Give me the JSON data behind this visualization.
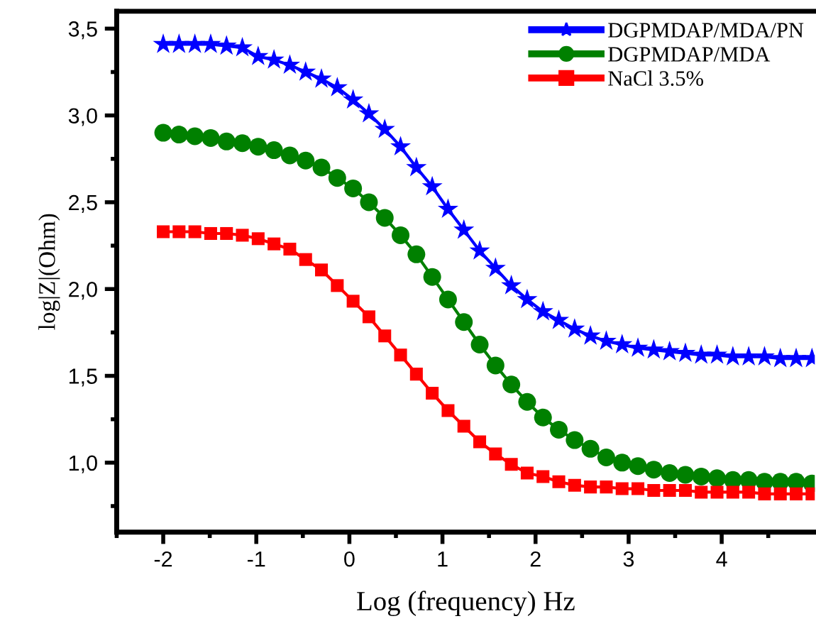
{
  "chart_data": {
    "type": "line",
    "xlabel": "Log (frequency) Hz",
    "ylabel": "log|Z|(Ohm)",
    "xlim": [
      -2.5,
      5.0
    ],
    "ylim": [
      0.6,
      3.6
    ],
    "xticks": [
      {
        "value": -2.5,
        "label": null
      },
      -2,
      {
        "value": -1.5,
        "label": null
      },
      -1,
      {
        "value": -0.5,
        "label": null
      },
      0,
      {
        "value": 0.5,
        "label": null
      },
      1,
      {
        "value": 1.5,
        "label": null
      },
      2,
      {
        "value": 2.5,
        "label": null
      },
      3,
      {
        "value": 3.5,
        "label": null
      },
      4,
      {
        "value": 4.5,
        "label": null
      }
    ],
    "yticks": [
      {
        "value": 0.75,
        "label": null
      },
      {
        "value": 1.0,
        "label": "1,0"
      },
      {
        "value": 1.25,
        "label": null
      },
      {
        "value": 1.5,
        "label": "1,5"
      },
      {
        "value": 1.75,
        "label": null
      },
      {
        "value": 2.0,
        "label": "2,0"
      },
      {
        "value": 2.25,
        "label": null
      },
      {
        "value": 2.5,
        "label": "2,5"
      },
      {
        "value": 2.75,
        "label": null
      },
      {
        "value": 3.0,
        "label": "3,0"
      },
      {
        "value": 3.25,
        "label": null
      },
      {
        "value": 3.5,
        "label": "3,5"
      }
    ],
    "x": [
      -2.0,
      -1.83,
      -1.66,
      -1.49,
      -1.32,
      -1.15,
      -0.98,
      -0.81,
      -0.64,
      -0.47,
      -0.3,
      -0.13,
      0.04,
      0.21,
      0.38,
      0.55,
      0.72,
      0.89,
      1.06,
      1.23,
      1.4,
      1.57,
      1.74,
      1.91,
      2.08,
      2.25,
      2.42,
      2.59,
      2.76,
      2.93,
      3.1,
      3.27,
      3.44,
      3.61,
      3.78,
      3.95,
      4.12,
      4.29,
      4.46,
      4.63,
      4.8,
      4.97
    ],
    "legend": "top right",
    "grid": false,
    "series": [
      {
        "name": "DGPMDAP/MDA/PN",
        "color": "#0000ff",
        "marker": "star",
        "values": [
          3.41,
          3.41,
          3.41,
          3.41,
          3.4,
          3.39,
          3.34,
          3.32,
          3.29,
          3.25,
          3.21,
          3.16,
          3.09,
          3.01,
          2.92,
          2.82,
          2.7,
          2.59,
          2.46,
          2.34,
          2.22,
          2.12,
          2.02,
          1.94,
          1.87,
          1.82,
          1.77,
          1.73,
          1.7,
          1.68,
          1.66,
          1.65,
          1.64,
          1.63,
          1.62,
          1.62,
          1.61,
          1.61,
          1.61,
          1.6,
          1.6,
          1.6
        ]
      },
      {
        "name": "DGPMDAP/MDA",
        "color": "#008000",
        "marker": "circle",
        "values": [
          2.9,
          2.89,
          2.88,
          2.87,
          2.85,
          2.84,
          2.82,
          2.8,
          2.77,
          2.74,
          2.7,
          2.64,
          2.58,
          2.5,
          2.41,
          2.31,
          2.2,
          2.07,
          1.94,
          1.81,
          1.68,
          1.56,
          1.45,
          1.35,
          1.26,
          1.19,
          1.13,
          1.08,
          1.03,
          1.0,
          0.98,
          0.96,
          0.94,
          0.93,
          0.92,
          0.91,
          0.9,
          0.9,
          0.89,
          0.89,
          0.89,
          0.88
        ]
      },
      {
        "name": "NaCl 3.5%",
        "color": "#ff0000",
        "marker": "square",
        "values": [
          2.33,
          2.33,
          2.33,
          2.32,
          2.32,
          2.31,
          2.29,
          2.26,
          2.23,
          2.17,
          2.11,
          2.02,
          1.93,
          1.84,
          1.73,
          1.62,
          1.51,
          1.4,
          1.3,
          1.21,
          1.12,
          1.05,
          0.99,
          0.94,
          0.92,
          0.89,
          0.87,
          0.86,
          0.86,
          0.85,
          0.85,
          0.84,
          0.84,
          0.84,
          0.83,
          0.83,
          0.83,
          0.83,
          0.82,
          0.82,
          0.82,
          0.82
        ]
      }
    ]
  }
}
